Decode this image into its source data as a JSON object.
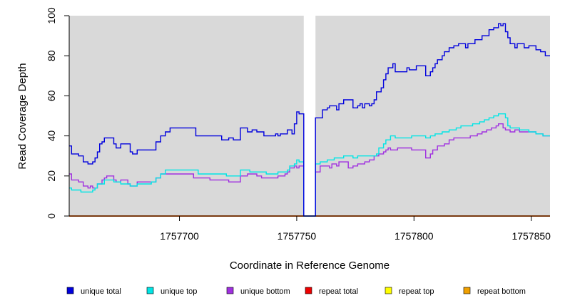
{
  "chart_data": {
    "type": "line",
    "line_style": "step",
    "title": "",
    "xlabel": "Coordinate in Reference Genome",
    "ylabel": "Read Coverage Depth",
    "xlim": [
      1757653,
      1757858
    ],
    "ylim": [
      0,
      100
    ],
    "x_ticks": [
      1757700,
      1757750,
      1757800,
      1757850
    ],
    "y_ticks": [
      0,
      20,
      40,
      60,
      80,
      100
    ],
    "background": "#d9d9d9",
    "gap_region": [
      1757753,
      1757758
    ],
    "legend_position": "bottom",
    "series": [
      {
        "name": "unique total",
        "color": "#0000dd",
        "points": [
          [
            1757653,
            35
          ],
          [
            1757654,
            31
          ],
          [
            1757657,
            30
          ],
          [
            1757659,
            27
          ],
          [
            1757661,
            26
          ],
          [
            1757663,
            27
          ],
          [
            1757664,
            29
          ],
          [
            1757665,
            32
          ],
          [
            1757666,
            36
          ],
          [
            1757667,
            37
          ],
          [
            1757668,
            39
          ],
          [
            1757672,
            36
          ],
          [
            1757673,
            34
          ],
          [
            1757675,
            36
          ],
          [
            1757679,
            32
          ],
          [
            1757680,
            31
          ],
          [
            1757682,
            33
          ],
          [
            1757690,
            37
          ],
          [
            1757692,
            40
          ],
          [
            1757694,
            42
          ],
          [
            1757696,
            44
          ],
          [
            1757707,
            40
          ],
          [
            1757718,
            38
          ],
          [
            1757721,
            39
          ],
          [
            1757723,
            38
          ],
          [
            1757726,
            44
          ],
          [
            1757729,
            42
          ],
          [
            1757731,
            43
          ],
          [
            1757733,
            42
          ],
          [
            1757736,
            40
          ],
          [
            1757741,
            41
          ],
          [
            1757742,
            40
          ],
          [
            1757743,
            41
          ],
          [
            1757746,
            43
          ],
          [
            1757748,
            41
          ],
          [
            1757749,
            46
          ],
          [
            1757750,
            52
          ],
          [
            1757751,
            51
          ],
          [
            1757753,
            0
          ],
          [
            1757758,
            49
          ],
          [
            1757761,
            53
          ],
          [
            1757763,
            54
          ],
          [
            1757764,
            55
          ],
          [
            1757767,
            53
          ],
          [
            1757768,
            56
          ],
          [
            1757770,
            58
          ],
          [
            1757774,
            54
          ],
          [
            1757776,
            55
          ],
          [
            1757777,
            56
          ],
          [
            1757778,
            54
          ],
          [
            1757779,
            56
          ],
          [
            1757781,
            55
          ],
          [
            1757782,
            56
          ],
          [
            1757783,
            58
          ],
          [
            1757784,
            62
          ],
          [
            1757786,
            64
          ],
          [
            1757787,
            68
          ],
          [
            1757788,
            71
          ],
          [
            1757789,
            74
          ],
          [
            1757791,
            76
          ],
          [
            1757792,
            72
          ],
          [
            1757797,
            74
          ],
          [
            1757798,
            73
          ],
          [
            1757801,
            75
          ],
          [
            1757805,
            70
          ],
          [
            1757807,
            72
          ],
          [
            1757808,
            74
          ],
          [
            1757809,
            76
          ],
          [
            1757810,
            78
          ],
          [
            1757812,
            80
          ],
          [
            1757813,
            82
          ],
          [
            1757815,
            84
          ],
          [
            1757817,
            85
          ],
          [
            1757819,
            86
          ],
          [
            1757822,
            84
          ],
          [
            1757823,
            86
          ],
          [
            1757826,
            88
          ],
          [
            1757829,
            90
          ],
          [
            1757832,
            93
          ],
          [
            1757834,
            94
          ],
          [
            1757836,
            96
          ],
          [
            1757837,
            95
          ],
          [
            1757838,
            96
          ],
          [
            1757839,
            92
          ],
          [
            1757840,
            89
          ],
          [
            1757841,
            86
          ],
          [
            1757843,
            84
          ],
          [
            1757844,
            86
          ],
          [
            1757846,
            86
          ],
          [
            1757847,
            84
          ],
          [
            1757849,
            85
          ],
          [
            1757852,
            83
          ],
          [
            1757854,
            82
          ],
          [
            1757856,
            80
          ],
          [
            1757858,
            80
          ]
        ]
      },
      {
        "name": "unique top",
        "color": "#00e5e5",
        "points": [
          [
            1757653,
            14
          ],
          [
            1757654,
            13
          ],
          [
            1757658,
            12
          ],
          [
            1757663,
            13
          ],
          [
            1757664,
            14
          ],
          [
            1757665,
            16
          ],
          [
            1757668,
            18
          ],
          [
            1757672,
            17
          ],
          [
            1757675,
            16
          ],
          [
            1757679,
            15
          ],
          [
            1757682,
            16
          ],
          [
            1757688,
            17
          ],
          [
            1757690,
            19
          ],
          [
            1757692,
            21
          ],
          [
            1757694,
            23
          ],
          [
            1757708,
            21
          ],
          [
            1757720,
            20
          ],
          [
            1757726,
            23
          ],
          [
            1757730,
            22
          ],
          [
            1757733,
            22
          ],
          [
            1757737,
            21
          ],
          [
            1757742,
            22
          ],
          [
            1757746,
            23
          ],
          [
            1757747,
            25
          ],
          [
            1757749,
            26
          ],
          [
            1757750,
            28
          ],
          [
            1757751,
            27
          ],
          [
            1757753,
            0
          ],
          [
            1757758,
            26
          ],
          [
            1757760,
            27
          ],
          [
            1757763,
            28
          ],
          [
            1757766,
            29
          ],
          [
            1757770,
            30
          ],
          [
            1757774,
            29
          ],
          [
            1757776,
            30
          ],
          [
            1757784,
            31
          ],
          [
            1757785,
            34
          ],
          [
            1757787,
            36
          ],
          [
            1757788,
            38
          ],
          [
            1757790,
            40
          ],
          [
            1757792,
            39
          ],
          [
            1757794,
            39
          ],
          [
            1757799,
            40
          ],
          [
            1757805,
            39
          ],
          [
            1757807,
            40
          ],
          [
            1757809,
            41
          ],
          [
            1757812,
            42
          ],
          [
            1757815,
            43
          ],
          [
            1757818,
            44
          ],
          [
            1757820,
            45
          ],
          [
            1757823,
            45
          ],
          [
            1757825,
            46
          ],
          [
            1757828,
            47
          ],
          [
            1757830,
            48
          ],
          [
            1757832,
            49
          ],
          [
            1757834,
            50
          ],
          [
            1757836,
            51
          ],
          [
            1757839,
            49
          ],
          [
            1757840,
            45
          ],
          [
            1757841,
            44
          ],
          [
            1757845,
            43
          ],
          [
            1757849,
            42
          ],
          [
            1757852,
            41
          ],
          [
            1757855,
            40
          ],
          [
            1757858,
            40
          ]
        ]
      },
      {
        "name": "unique bottom",
        "color": "#a030e0",
        "points": [
          [
            1757653,
            21
          ],
          [
            1757654,
            18
          ],
          [
            1757657,
            17
          ],
          [
            1757659,
            15
          ],
          [
            1757661,
            14
          ],
          [
            1757662,
            15
          ],
          [
            1757663,
            14
          ],
          [
            1757665,
            16
          ],
          [
            1757667,
            18
          ],
          [
            1757668,
            19
          ],
          [
            1757669,
            20
          ],
          [
            1757672,
            18
          ],
          [
            1757673,
            17
          ],
          [
            1757675,
            18
          ],
          [
            1757678,
            16
          ],
          [
            1757679,
            15
          ],
          [
            1757682,
            17
          ],
          [
            1757690,
            19
          ],
          [
            1757692,
            21
          ],
          [
            1757706,
            19
          ],
          [
            1757713,
            18
          ],
          [
            1757721,
            17
          ],
          [
            1757726,
            20
          ],
          [
            1757729,
            21
          ],
          [
            1757733,
            20
          ],
          [
            1757735,
            19
          ],
          [
            1757742,
            20
          ],
          [
            1757745,
            21
          ],
          [
            1757746,
            22
          ],
          [
            1757747,
            24
          ],
          [
            1757749,
            25
          ],
          [
            1757750,
            24
          ],
          [
            1757751,
            25
          ],
          [
            1757753,
            0
          ],
          [
            1757758,
            22
          ],
          [
            1757760,
            25
          ],
          [
            1757764,
            24
          ],
          [
            1757765,
            26
          ],
          [
            1757767,
            25
          ],
          [
            1757768,
            27
          ],
          [
            1757772,
            24
          ],
          [
            1757774,
            25
          ],
          [
            1757776,
            26
          ],
          [
            1757779,
            27
          ],
          [
            1757781,
            28
          ],
          [
            1757783,
            30
          ],
          [
            1757785,
            31
          ],
          [
            1757787,
            32
          ],
          [
            1757788,
            33
          ],
          [
            1757789,
            34
          ],
          [
            1757790,
            33
          ],
          [
            1757793,
            34
          ],
          [
            1757799,
            33
          ],
          [
            1757805,
            29
          ],
          [
            1757807,
            31
          ],
          [
            1757808,
            33
          ],
          [
            1757810,
            35
          ],
          [
            1757813,
            36
          ],
          [
            1757815,
            38
          ],
          [
            1757817,
            39
          ],
          [
            1757822,
            39
          ],
          [
            1757824,
            40
          ],
          [
            1757827,
            41
          ],
          [
            1757829,
            42
          ],
          [
            1757831,
            43
          ],
          [
            1757833,
            44
          ],
          [
            1757835,
            45
          ],
          [
            1757836,
            46
          ],
          [
            1757838,
            44
          ],
          [
            1757839,
            43
          ],
          [
            1757841,
            42
          ],
          [
            1757843,
            43
          ],
          [
            1757845,
            42
          ],
          [
            1757849,
            42
          ],
          [
            1757852,
            41
          ],
          [
            1757855,
            40
          ],
          [
            1757858,
            40
          ]
        ]
      },
      {
        "name": "repeat total",
        "color": "#ee0000",
        "points": [
          [
            1757653,
            0
          ],
          [
            1757858,
            0
          ]
        ]
      },
      {
        "name": "repeat top",
        "color": "#ffff00",
        "points": [
          [
            1757653,
            0
          ],
          [
            1757858,
            0
          ]
        ]
      },
      {
        "name": "repeat bottom",
        "color": "#f0a000",
        "points": [
          [
            1757653,
            0
          ],
          [
            1757858,
            0
          ]
        ]
      }
    ]
  }
}
